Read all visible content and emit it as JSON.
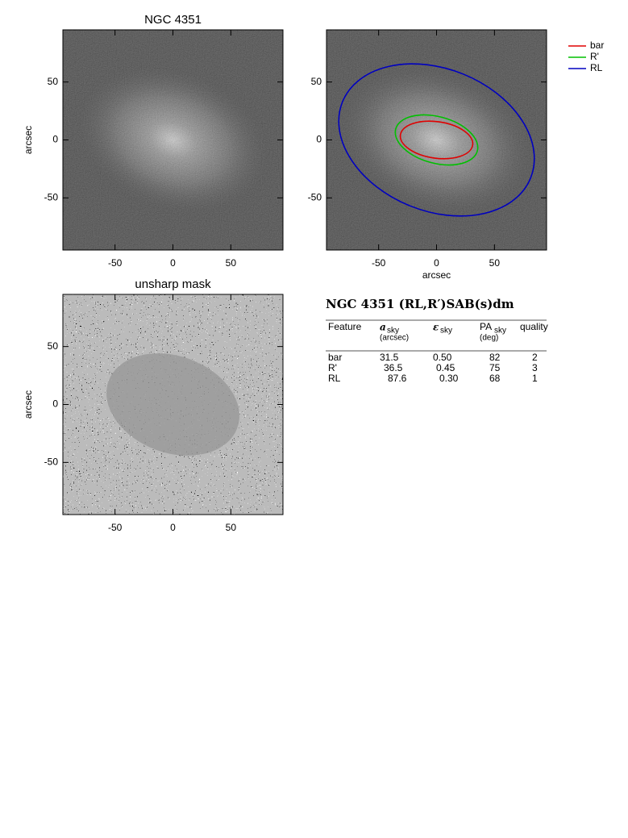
{
  "panels": [
    {
      "title": "NGC 4351",
      "ylabel": "arcsec",
      "xlim": [
        -95,
        95
      ],
      "ylim": [
        -95,
        95
      ],
      "xticks": [
        -50,
        0,
        50
      ],
      "yticks": [
        -50,
        0,
        50
      ]
    },
    {
      "xlabel": "arcsec",
      "xlim": [
        -95,
        95
      ],
      "ylim": [
        -95,
        95
      ],
      "xticks": [
        -50,
        0,
        50
      ],
      "yticks": [
        -50,
        0,
        50
      ]
    },
    {
      "title": "unsharp mask",
      "ylabel": "arcsec",
      "xlim": [
        -95,
        95
      ],
      "ylim": [
        -95,
        95
      ],
      "xticks": [
        -50,
        0,
        50
      ],
      "yticks": [
        -50,
        0,
        50
      ]
    }
  ],
  "legend": [
    {
      "name": "bar",
      "color": "#e00000"
    },
    {
      "name": "R'",
      "color": "#00c000"
    },
    {
      "name": "RL",
      "color": "#0000c0"
    }
  ],
  "table": {
    "title": "NGC 4351  (RL,R′)SAB(s)dm",
    "header": [
      {
        "main": "Feature"
      },
      {
        "main": "a",
        "sub": "sky",
        "unit": "(arcsec)"
      },
      {
        "main": "ε",
        "sub": "sky"
      },
      {
        "main": "PA",
        "sub": "sky",
        "unit": "(deg)"
      },
      {
        "main": "quality"
      }
    ],
    "rows": [
      [
        "bar",
        "31.5",
        "0.50",
        "82",
        "2"
      ],
      [
        "R'",
        "36.5",
        "0.45",
        "75",
        "3"
      ],
      [
        "RL",
        "87.6",
        "0.30",
        "68",
        "1"
      ]
    ]
  }
}
